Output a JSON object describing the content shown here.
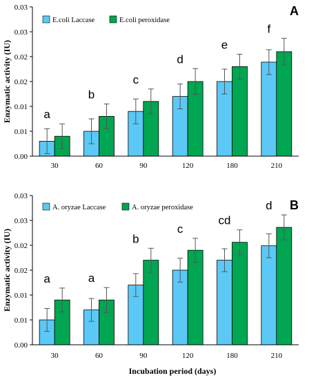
{
  "chart_data": [
    {
      "type": "bar",
      "panel_letter": "A",
      "categories": [
        "30",
        "60",
        "90",
        "120",
        "180",
        "210"
      ],
      "ylabel": "Enzymatic activity (IU)",
      "xlabel": "",
      "yticks": [
        "0.00",
        "0.01",
        "0.01",
        "0.02",
        "0.02",
        "0.03",
        "0.03"
      ],
      "ylim": [
        0,
        0.03
      ],
      "grid": false,
      "legend_position": "top-left",
      "series": [
        {
          "name": "E.coli Laccase",
          "color": "#5bc8f5",
          "values": [
            0.003,
            0.005,
            0.009,
            0.012,
            0.015,
            0.0189
          ],
          "errors": [
            0.0025,
            0.0025,
            0.0025,
            0.0025,
            0.0025,
            0.0025
          ]
        },
        {
          "name": "E.coli peroxidase",
          "color": "#00a651",
          "values": [
            0.004,
            0.008,
            0.011,
            0.015,
            0.018,
            0.021
          ],
          "errors": [
            0.0025,
            0.0025,
            0.0025,
            0.0026,
            0.0025,
            0.0027
          ]
        }
      ],
      "group_labels": [
        "a",
        "b",
        "c",
        "d",
        "e",
        "f"
      ]
    },
    {
      "type": "bar",
      "panel_letter": "B",
      "categories": [
        "30",
        "60",
        "90",
        "120",
        "180",
        "210"
      ],
      "ylabel": "Enzymatic activity (IU)",
      "xlabel": "Incubation period (days)",
      "yticks": [
        "0.00",
        "0.01",
        "0.01",
        "0.02",
        "0.02",
        "0.03",
        "0.03"
      ],
      "ylim": [
        0,
        0.03
      ],
      "grid": false,
      "legend_position": "top-left",
      "series": [
        {
          "name": "A. oryzae Laccase",
          "color": "#5bc8f5",
          "values": [
            0.005,
            0.007,
            0.012,
            0.015,
            0.017,
            0.0199
          ],
          "errors": [
            0.0023,
            0.0023,
            0.0023,
            0.0024,
            0.0023,
            0.0024
          ]
        },
        {
          "name": "A. oryzae peroxidase",
          "color": "#00a651",
          "values": [
            0.009,
            0.009,
            0.017,
            0.019,
            0.0206,
            0.0236
          ],
          "errors": [
            0.0024,
            0.0025,
            0.0024,
            0.0024,
            0.0025,
            0.0025
          ]
        }
      ],
      "group_labels": [
        "a",
        "a",
        "b",
        "c",
        "cd",
        "d"
      ]
    }
  ]
}
